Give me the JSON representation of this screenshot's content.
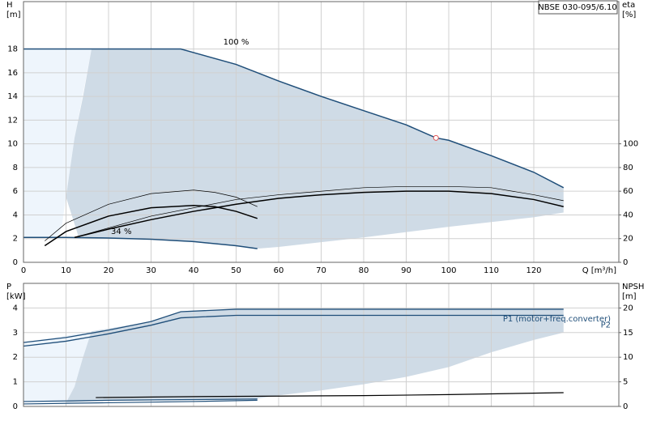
{
  "legend_title": "NBSE 030-095/6.10",
  "chart_data": [
    {
      "type": "line",
      "ylabel": [
        "H",
        "[m]"
      ],
      "y2label": [
        "eta",
        "[%]"
      ],
      "xlabel": "Q [m³/h]",
      "xlim": [
        0,
        140
      ],
      "xticks": [
        0,
        10,
        20,
        30,
        40,
        50,
        60,
        70,
        80,
        90,
        100,
        110,
        120
      ],
      "xtick_labels": true,
      "ylim": [
        0,
        22
      ],
      "yticks": [
        0,
        2,
        4,
        6,
        8,
        10,
        12,
        14,
        16,
        18
      ],
      "y2lim": [
        0,
        220
      ],
      "y2ticks": [
        0,
        20,
        40,
        60,
        80,
        100
      ],
      "grid": true,
      "regions": [
        {
          "color": "#eef5fc",
          "x": [
            0,
            0,
            16,
            12,
            10,
            9,
            8,
            0
          ],
          "values": [
            2.1,
            18,
            18,
            10.5,
            5.5,
            3,
            2.1,
            2.1
          ]
        },
        {
          "color": "#cfdbe6",
          "x": [
            16,
            37,
            40,
            50,
            60,
            70,
            80,
            90,
            97,
            100,
            110,
            120,
            127,
            127,
            120,
            100,
            80,
            60,
            55,
            50,
            40,
            30,
            20,
            13,
            10,
            11,
            12,
            14
          ],
          "values": [
            18,
            18,
            17.7,
            16.7,
            15.3,
            14,
            12.8,
            11.6,
            10.5,
            10.3,
            9,
            7.6,
            6.3,
            4.2,
            3.8,
            3.0,
            2.1,
            1.3,
            1.15,
            1.4,
            1.75,
            1.95,
            2.05,
            2.1,
            5.5,
            8,
            10.5,
            14
          ]
        }
      ],
      "series": [
        {
          "color": "#1f4e79",
          "width": 1.5,
          "x": [
            0,
            37,
            40,
            50,
            60,
            70,
            80,
            90,
            97,
            100,
            110,
            120,
            127
          ],
          "values": [
            18,
            18,
            17.7,
            16.7,
            15.3,
            14,
            12.8,
            11.6,
            10.5,
            10.3,
            9,
            7.6,
            6.3
          ]
        },
        {
          "color": "#1f4e79",
          "width": 1.5,
          "x": [
            0,
            10,
            20,
            30,
            40,
            50,
            55
          ],
          "values": [
            2.1,
            2.1,
            2.05,
            1.95,
            1.75,
            1.4,
            1.15
          ]
        },
        {
          "color": "#000000",
          "width": 1.5,
          "axis": "y2",
          "x": [
            12,
            20,
            30,
            40,
            50,
            60,
            70,
            80,
            90,
            100,
            110,
            120,
            127
          ],
          "values": [
            21,
            28,
            36,
            43,
            49,
            54,
            57,
            59,
            60,
            60,
            58,
            53,
            47
          ]
        },
        {
          "color": "#000000",
          "width": 0.7,
          "axis": "y2",
          "x": [
            12,
            30,
            50,
            60,
            80,
            90,
            100,
            110,
            120,
            127
          ],
          "values": [
            21,
            39,
            53,
            57,
            63,
            64,
            64,
            63,
            57,
            52
          ]
        },
        {
          "color": "#000000",
          "width": 1.5,
          "axis": "y2",
          "x": [
            5,
            10,
            20,
            30,
            40,
            45,
            50,
            55
          ],
          "values": [
            14,
            26,
            39,
            46,
            48,
            47,
            43,
            37
          ]
        },
        {
          "color": "#000000",
          "width": 0.7,
          "axis": "y2",
          "x": [
            5,
            10,
            20,
            30,
            40,
            45,
            50,
            55
          ],
          "values": [
            18,
            33,
            49,
            58,
            61,
            59,
            55,
            47
          ]
        }
      ],
      "annotations": [
        "100 %",
        "34 %"
      ],
      "operating_point": {
        "x": 97,
        "y": 10.5,
        "color": "#e05050"
      }
    },
    {
      "type": "line",
      "ylabel": [
        "P",
        "[kW]"
      ],
      "y2label": [
        "NPSH",
        "[m]"
      ],
      "xlim": [
        0,
        140
      ],
      "xticks": [
        0,
        10,
        20,
        30,
        40,
        50,
        60,
        70,
        80,
        90,
        100,
        110,
        120
      ],
      "xtick_labels": false,
      "ylim": [
        0,
        5
      ],
      "yticks": [
        0,
        1,
        2,
        3,
        4
      ],
      "y2lim": [
        0,
        25
      ],
      "y2ticks": [
        0,
        5,
        10,
        15,
        20
      ],
      "grid": true,
      "regions": [
        {
          "color": "#eef5fc",
          "x": [
            0,
            0,
            16,
            12,
            10,
            0
          ],
          "values": [
            0.15,
            2.6,
            3.05,
            0.8,
            0.15,
            0.15
          ]
        },
        {
          "color": "#cfdbe6",
          "x": [
            16,
            30,
            37,
            50,
            127,
            127,
            120,
            110,
            100,
            90,
            80,
            70,
            60,
            55,
            40,
            20,
            10,
            12,
            14
          ],
          "values": [
            3.05,
            3.45,
            3.85,
            3.95,
            3.95,
            3.0,
            2.7,
            2.2,
            1.6,
            1.2,
            0.9,
            0.65,
            0.45,
            0.32,
            0.3,
            0.25,
            0.15,
            0.8,
            2
          ]
        }
      ],
      "series": [
        {
          "name": "P1 (motor+freq.converter)",
          "color": "#1f4e79",
          "width": 1.3,
          "x": [
            0,
            10,
            20,
            30,
            37,
            50,
            127
          ],
          "values": [
            2.6,
            2.8,
            3.1,
            3.45,
            3.85,
            3.95,
            3.95
          ]
        },
        {
          "name": "P2",
          "color": "#1f4e79",
          "width": 1.3,
          "x": [
            0,
            10,
            20,
            30,
            37,
            50,
            127
          ],
          "values": [
            2.45,
            2.65,
            2.95,
            3.3,
            3.6,
            3.7,
            3.7
          ]
        },
        {
          "color": "#1f4e79",
          "width": 1.2,
          "x": [
            0,
            20,
            40,
            55
          ],
          "values": [
            0.2,
            0.25,
            0.28,
            0.3
          ]
        },
        {
          "color": "#1f4e79",
          "width": 1.2,
          "x": [
            0,
            20,
            40,
            55
          ],
          "values": [
            0.1,
            0.15,
            0.2,
            0.25
          ]
        },
        {
          "color": "#000000",
          "width": 1.2,
          "axis": "y2",
          "x": [
            17,
            40,
            60,
            80,
            100,
            127
          ],
          "values": [
            1.8,
            2.0,
            2.1,
            2.2,
            2.4,
            2.8
          ]
        }
      ]
    }
  ]
}
